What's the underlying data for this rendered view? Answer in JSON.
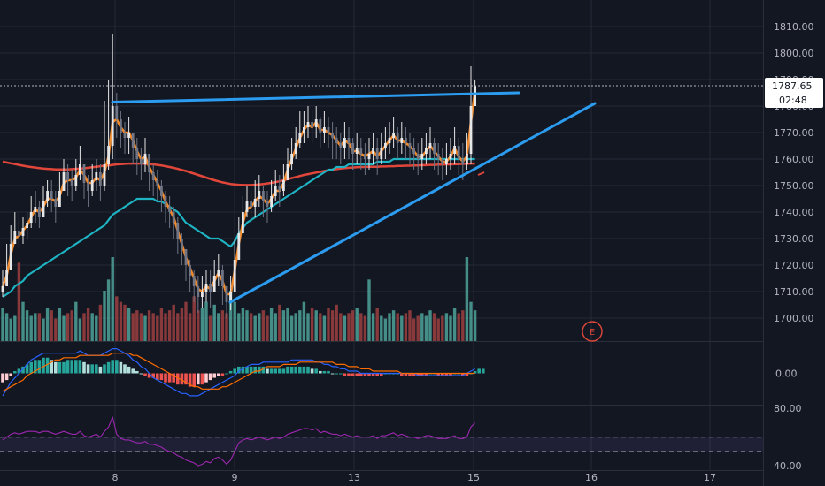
{
  "chart_data": {
    "type": "candlestick",
    "x_ticks": [
      "8",
      "9",
      "13",
      "15",
      "16",
      "17"
    ],
    "price_axis": {
      "ticks": [
        "1810.00",
        "1800.00",
        "1790.00",
        "1780.00",
        "1770.00",
        "1760.00",
        "1750.00",
        "1740.00",
        "1730.00",
        "1720.00",
        "1710.00",
        "1700.00"
      ],
      "range": [
        1693,
        1815
      ],
      "last_price": "1787.65",
      "countdown": "02:48"
    },
    "price_series_close": [
      1712,
      1718,
      1728,
      1733,
      1731,
      1734,
      1736,
      1740,
      1742,
      1738,
      1744,
      1748,
      1745,
      1742,
      1748,
      1755,
      1752,
      1750,
      1754,
      1758,
      1751,
      1748,
      1752,
      1755,
      1750,
      1758,
      1765,
      1780,
      1775,
      1770,
      1768,
      1770,
      1764,
      1760,
      1758,
      1762,
      1755,
      1752,
      1750,
      1746,
      1742,
      1740,
      1736,
      1730,
      1726,
      1720,
      1716,
      1712,
      1708,
      1710,
      1713,
      1710,
      1716,
      1718,
      1712,
      1706,
      1710,
      1722,
      1732,
      1740,
      1744,
      1742,
      1745,
      1748,
      1744,
      1742,
      1746,
      1750,
      1748,
      1752,
      1758,
      1762,
      1766,
      1770,
      1772,
      1774,
      1772,
      1775,
      1770,
      1772,
      1770,
      1768,
      1766,
      1764,
      1768,
      1766,
      1762,
      1764,
      1762,
      1760,
      1762,
      1764,
      1760,
      1764,
      1766,
      1768,
      1770,
      1766,
      1768,
      1766,
      1764,
      1762,
      1760,
      1762,
      1764,
      1766,
      1762,
      1760,
      1758,
      1760,
      1762,
      1765,
      1760,
      1758,
      1762,
      1780,
      1787.65
    ],
    "price_series_high": [
      1718,
      1728,
      1735,
      1740,
      1740,
      1738,
      1740,
      1746,
      1748,
      1744,
      1750,
      1752,
      1752,
      1748,
      1755,
      1760,
      1758,
      1756,
      1760,
      1765,
      1758,
      1754,
      1758,
      1760,
      1758,
      1782,
      1790,
      1807,
      1785,
      1778,
      1774,
      1776,
      1770,
      1768,
      1764,
      1768,
      1762,
      1758,
      1756,
      1752,
      1748,
      1746,
      1742,
      1738,
      1732,
      1726,
      1722,
      1718,
      1716,
      1716,
      1718,
      1718,
      1722,
      1724,
      1720,
      1712,
      1716,
      1730,
      1738,
      1746,
      1750,
      1748,
      1752,
      1754,
      1750,
      1748,
      1752,
      1756,
      1754,
      1758,
      1764,
      1768,
      1772,
      1778,
      1778,
      1780,
      1778,
      1780,
      1776,
      1778,
      1776,
      1774,
      1772,
      1770,
      1774,
      1772,
      1768,
      1770,
      1768,
      1766,
      1768,
      1770,
      1768,
      1770,
      1772,
      1774,
      1776,
      1772,
      1774,
      1772,
      1770,
      1768,
      1766,
      1768,
      1770,
      1772,
      1768,
      1766,
      1764,
      1766,
      1768,
      1772,
      1768,
      1766,
      1770,
      1795,
      1790
    ],
    "price_series_low": [
      1708,
      1712,
      1720,
      1728,
      1726,
      1728,
      1730,
      1734,
      1736,
      1734,
      1738,
      1742,
      1740,
      1736,
      1742,
      1748,
      1746,
      1744,
      1748,
      1752,
      1745,
      1742,
      1746,
      1748,
      1744,
      1748,
      1756,
      1760,
      1768,
      1764,
      1762,
      1762,
      1758,
      1754,
      1752,
      1755,
      1748,
      1746,
      1744,
      1740,
      1736,
      1734,
      1730,
      1724,
      1720,
      1714,
      1710,
      1706,
      1702,
      1704,
      1706,
      1704,
      1710,
      1712,
      1705,
      1700,
      1703,
      1712,
      1726,
      1734,
      1738,
      1736,
      1738,
      1742,
      1738,
      1736,
      1740,
      1744,
      1742,
      1746,
      1752,
      1756,
      1760,
      1764,
      1766,
      1768,
      1766,
      1768,
      1764,
      1766,
      1764,
      1760,
      1760,
      1758,
      1760,
      1760,
      1756,
      1758,
      1756,
      1754,
      1756,
      1758,
      1754,
      1758,
      1760,
      1762,
      1764,
      1760,
      1762,
      1760,
      1758,
      1756,
      1754,
      1756,
      1758,
      1760,
      1756,
      1754,
      1752,
      1754,
      1756,
      1758,
      1754,
      1752,
      1756,
      1758,
      1780
    ],
    "ma_fast_orange": [
      1712,
      1716,
      1724,
      1730,
      1731,
      1733,
      1735,
      1738,
      1741,
      1740,
      1742,
      1745,
      1745,
      1744,
      1746,
      1751,
      1752,
      1752,
      1753,
      1756,
      1754,
      1751,
      1751,
      1753,
      1752,
      1755,
      1761,
      1774,
      1775,
      1772,
      1770,
      1770,
      1767,
      1763,
      1760,
      1761,
      1757,
      1754,
      1751,
      1748,
      1744,
      1741,
      1738,
      1733,
      1728,
      1723,
      1719,
      1715,
      1711,
      1710,
      1712,
      1711,
      1714,
      1717,
      1714,
      1709,
      1709,
      1718,
      1728,
      1736,
      1741,
      1742,
      1744,
      1746,
      1745,
      1743,
      1745,
      1748,
      1748,
      1751,
      1756,
      1760,
      1764,
      1768,
      1771,
      1773,
      1772,
      1774,
      1771,
      1771,
      1770,
      1769,
      1767,
      1765,
      1767,
      1766,
      1763,
      1763,
      1762,
      1761,
      1762,
      1763,
      1761,
      1763,
      1765,
      1767,
      1769,
      1767,
      1767,
      1766,
      1765,
      1763,
      1761,
      1761,
      1763,
      1765,
      1763,
      1761,
      1759,
      1759,
      1761,
      1764,
      1761,
      1759,
      1761,
      1774,
      1786
    ],
    "ma_teal": [
      1708,
      1709,
      1710,
      1712,
      1713,
      1714,
      1716,
      1717,
      1718,
      1719,
      1720,
      1721,
      1722,
      1723,
      1724,
      1725,
      1726,
      1727,
      1728,
      1729,
      1730,
      1731,
      1732,
      1733,
      1734,
      1735,
      1737,
      1739,
      1740,
      1741,
      1742,
      1743,
      1744,
      1745,
      1745,
      1745,
      1745,
      1745,
      1744,
      1744,
      1743,
      1742,
      1741,
      1740,
      1738,
      1736,
      1735,
      1734,
      1733,
      1732,
      1731,
      1730,
      1730,
      1730,
      1729,
      1728,
      1727,
      1729,
      1732,
      1734,
      1736,
      1737,
      1738,
      1739,
      1740,
      1741,
      1742,
      1743,
      1744,
      1745,
      1746,
      1747,
      1748,
      1749,
      1750,
      1751,
      1752,
      1753,
      1754,
      1755,
      1756,
      1756,
      1757,
      1757,
      1757,
      1758,
      1758,
      1758,
      1758,
      1758,
      1758,
      1758,
      1759,
      1759,
      1759,
      1759,
      1760,
      1760,
      1760,
      1760,
      1760,
      1760,
      1760,
      1760,
      1760,
      1760,
      1760,
      1760,
      1760,
      1760,
      1760,
      1760,
      1760,
      1760,
      1760,
      1760,
      1760
    ],
    "ma_red": [
      1759,
      1758.7,
      1758.4,
      1758.1,
      1757.8,
      1757.5,
      1757.2,
      1757,
      1756.8,
      1756.6,
      1756.4,
      1756.3,
      1756.2,
      1756.1,
      1756.1,
      1756.1,
      1756.1,
      1756.2,
      1756.3,
      1756.4,
      1756.5,
      1756.7,
      1756.9,
      1757.1,
      1757.3,
      1757.5,
      1757.6,
      1757.8,
      1758,
      1758.1,
      1758.2,
      1758.3,
      1758.3,
      1758.3,
      1758.3,
      1758.2,
      1758.1,
      1758,
      1757.8,
      1757.6,
      1757.3,
      1757,
      1756.7,
      1756.3,
      1755.9,
      1755.5,
      1755,
      1754.5,
      1754,
      1753.5,
      1753,
      1752.5,
      1752,
      1751.6,
      1751.2,
      1750.9,
      1750.6,
      1750.4,
      1750.3,
      1750.2,
      1750.2,
      1750.2,
      1750.3,
      1750.4,
      1750.6,
      1750.8,
      1751,
      1751.3,
      1751.6,
      1752,
      1752.4,
      1752.8,
      1753.2,
      1753.6,
      1754,
      1754.3,
      1754.6,
      1754.9,
      1755.2,
      1755.5,
      1755.8,
      1756,
      1756.2,
      1756.4,
      1756.6,
      1756.7,
      1756.8,
      1756.9,
      1757,
      1757,
      1757.1,
      1757.1,
      1757.1,
      1757.2,
      1757.2,
      1757.3,
      1757.3,
      1757.4,
      1757.4,
      1757.5,
      1757.5,
      1757.6,
      1757.6,
      1757.7,
      1757.7,
      1757.8,
      1757.8,
      1757.9,
      1757.9,
      1758,
      1758,
      1758.1,
      1758.1,
      1758.2,
      1758.2,
      1758.3,
      1758.3
    ],
    "volume": [
      12,
      10,
      8,
      9,
      28,
      14,
      11,
      9,
      10,
      10,
      8,
      12,
      11,
      8,
      12,
      9,
      10,
      11,
      14,
      8,
      10,
      12,
      10,
      9,
      13,
      18,
      22,
      30,
      16,
      14,
      13,
      12,
      10,
      11,
      10,
      9,
      11,
      10,
      9,
      12,
      10,
      11,
      13,
      10,
      12,
      14,
      10,
      16,
      11,
      12,
      14,
      9,
      13,
      10,
      11,
      10,
      18,
      14,
      10,
      12,
      11,
      10,
      9,
      10,
      11,
      9,
      12,
      10,
      13,
      11,
      12,
      9,
      10,
      11,
      14,
      10,
      12,
      11,
      10,
      9,
      12,
      11,
      13,
      10,
      9,
      10,
      11,
      12,
      10,
      9,
      22,
      10,
      12,
      9,
      8,
      10,
      11,
      10,
      9,
      10,
      11,
      8,
      9,
      10,
      9,
      11,
      10,
      8,
      9,
      10,
      9,
      12,
      10,
      11,
      30,
      14,
      11
    ],
    "macd_hist": [
      -4,
      -3,
      -1,
      1,
      2,
      3,
      4,
      5,
      6,
      6,
      7,
      7,
      6,
      5,
      5,
      5,
      6,
      6,
      6,
      6,
      5,
      4,
      4,
      4,
      3,
      4,
      5,
      6,
      6,
      5,
      4,
      3,
      2,
      1,
      0,
      -1,
      -2,
      -2,
      -3,
      -3,
      -4,
      -4,
      -4,
      -5,
      -5,
      -5,
      -6,
      -6,
      -5,
      -5,
      -4,
      -3,
      -2,
      -1,
      -1,
      0,
      1,
      2,
      3,
      3,
      3,
      3,
      3,
      3,
      3,
      2,
      2,
      2,
      2,
      2,
      3,
      3,
      3,
      3,
      3,
      3,
      2,
      2,
      1,
      1,
      1,
      0,
      0,
      0,
      -1,
      -1,
      -1,
      -1,
      -1,
      -1,
      -1,
      -1,
      -1,
      -1,
      0,
      0,
      0,
      0,
      -1,
      -1,
      -1,
      -1,
      -1,
      -1,
      -1,
      0,
      0,
      -1,
      -1,
      -1,
      -1,
      0,
      0,
      -1,
      -1,
      0,
      1,
      2,
      2
    ],
    "macd_line": [
      -10,
      -7,
      -4,
      -2,
      0,
      2,
      4,
      6,
      7,
      8,
      9,
      9,
      9,
      9,
      9,
      9,
      9,
      9,
      9,
      10,
      9,
      8,
      8,
      8,
      8,
      9,
      10,
      11,
      11,
      10,
      9,
      8,
      6,
      5,
      3,
      2,
      0,
      -2,
      -3,
      -4,
      -5,
      -6,
      -7,
      -8,
      -9,
      -9,
      -10,
      -10,
      -10,
      -9,
      -8,
      -7,
      -6,
      -5,
      -4,
      -3,
      -2,
      -1,
      1,
      2,
      3,
      4,
      4,
      4,
      5,
      5,
      5,
      5,
      5,
      5,
      5,
      6,
      6,
      6,
      6,
      6,
      6,
      5,
      5,
      4,
      4,
      3,
      3,
      2,
      2,
      1,
      1,
      1,
      0,
      0,
      0,
      0,
      0,
      0,
      0,
      0,
      0,
      0,
      0,
      0,
      0,
      0,
      -1,
      -1,
      -1,
      -1,
      -1,
      -1,
      -1,
      -1,
      -1,
      -1,
      -1,
      -1,
      0,
      1,
      2
    ],
    "macd_signal": [
      -8,
      -7,
      -6,
      -5,
      -4,
      -3,
      -1,
      0,
      1,
      2,
      3,
      4,
      5,
      6,
      6,
      7,
      7,
      7,
      7,
      8,
      8,
      8,
      8,
      8,
      8,
      8,
      8,
      9,
      9,
      9,
      9,
      9,
      8,
      8,
      7,
      6,
      5,
      4,
      3,
      2,
      1,
      0,
      -1,
      -2,
      -3,
      -4,
      -5,
      -6,
      -6,
      -7,
      -7,
      -7,
      -7,
      -7,
      -6,
      -6,
      -5,
      -4,
      -3,
      -2,
      -1,
      0,
      1,
      1,
      2,
      3,
      3,
      3,
      3,
      4,
      4,
      4,
      4,
      5,
      5,
      5,
      5,
      5,
      5,
      5,
      5,
      5,
      4,
      4,
      4,
      3,
      3,
      3,
      2,
      2,
      2,
      1,
      1,
      1,
      1,
      1,
      1,
      1,
      0,
      0,
      0,
      0,
      0,
      0,
      0,
      0,
      0,
      0,
      0,
      0,
      0,
      0,
      0,
      0,
      0,
      0,
      0
    ],
    "rsi": [
      58,
      60,
      62,
      63,
      62,
      63,
      64,
      64,
      64,
      63,
      64,
      64,
      63,
      62,
      63,
      64,
      63,
      62,
      62,
      64,
      61,
      60,
      61,
      62,
      60,
      64,
      67,
      74,
      62,
      59,
      58,
      58,
      57,
      56,
      56,
      57,
      55,
      55,
      54,
      53,
      51,
      50,
      49,
      47,
      46,
      44,
      43,
      42,
      40,
      41,
      43,
      42,
      45,
      46,
      44,
      41,
      44,
      50,
      56,
      58,
      59,
      58,
      59,
      60,
      59,
      58,
      59,
      60,
      59,
      60,
      62,
      63,
      64,
      65,
      66,
      66,
      65,
      66,
      63,
      64,
      63,
      62,
      62,
      61,
      62,
      61,
      60,
      61,
      60,
      60,
      60,
      61,
      59,
      61,
      61,
      62,
      63,
      61,
      62,
      61,
      60,
      60,
      59,
      60,
      61,
      61,
      60,
      59,
      59,
      59,
      60,
      61,
      59,
      59,
      60,
      67,
      70
    ],
    "rsi_axis": {
      "ticks": [
        "80.00",
        "40.00"
      ],
      "range": [
        37,
        82
      ],
      "band_upper": 60,
      "band_lower": 50
    },
    "macd_axis": {
      "ticks": [
        "0.00"
      ],
      "range": [
        -14,
        14
      ]
    },
    "drawings": {
      "resistance_line": {
        "x": [
          10,
          118
        ],
        "y": [
          1781.5,
          1785
        ]
      },
      "support_line": {
        "x": [
          51,
          132
        ],
        "y": [
          1706,
          1781
        ]
      },
      "earnings_marker": "E"
    },
    "colors": {
      "background": "#131722",
      "grid": "#252a37",
      "candle_up": "#e6e6e6",
      "candle_down": "#6f7584",
      "ma_fast": "#f0882c",
      "ma_teal": "#1eb4c4",
      "ma_red": "#e0473a",
      "trendline": "#2c9cf0",
      "volume_up": "#4fa39a",
      "volume_down": "#9c3f3f",
      "rsi": "#9c27b0",
      "last_price_tag": "#ffffff"
    }
  }
}
